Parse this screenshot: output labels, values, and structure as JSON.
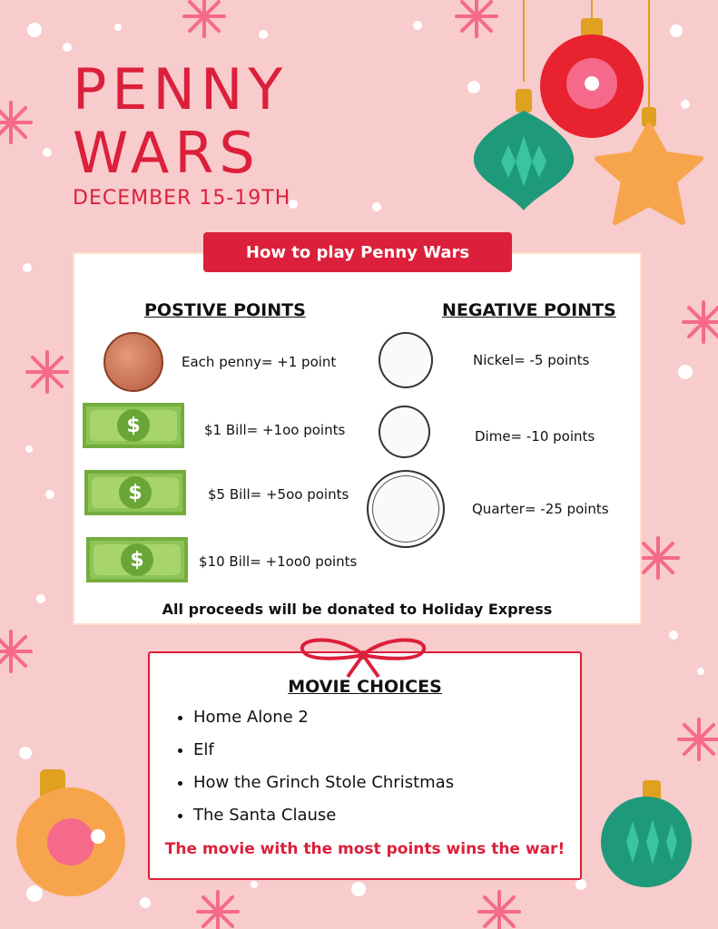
{
  "title": {
    "line1": "PENNY",
    "line2": "WARS",
    "dates": "DECEMBER 15-19TH"
  },
  "banner": "How to play Penny Wars",
  "positive": {
    "heading": "POSTIVE POINTS",
    "items": [
      {
        "icon": "penny-icon",
        "label": "Each penny= +1 point"
      },
      {
        "icon": "dollar-bill-icon",
        "label": "$1 Bill= +1oo points"
      },
      {
        "icon": "dollar-bill-icon",
        "label": "$5 Bill= +5oo points"
      },
      {
        "icon": "dollar-bill-icon",
        "label": "$10 Bill= +1oo0 points"
      }
    ]
  },
  "negative": {
    "heading": "NEGATIVE POINTS",
    "items": [
      {
        "icon": "nickel-icon",
        "label": "Nickel= -5 points"
      },
      {
        "icon": "dime-icon",
        "label": "Dime= -10 points"
      },
      {
        "icon": "quarter-icon",
        "label": "Quarter= -25 points"
      }
    ]
  },
  "bill_symbol": "$",
  "footer": "All proceeds will be donated to Holiday Express",
  "movies": {
    "heading": "MOVIE CHOICES",
    "items": [
      "Home Alone 2",
      "Elf",
      "How the Grinch Stole Christmas",
      "The Santa Clause"
    ],
    "tagline": "The movie with the most points wins the war!"
  },
  "colors": {
    "background": "#f8cbcc",
    "accent": "#dc1f3a",
    "bill": "#8dc455",
    "ornament_green": "#1e9a7a",
    "ornament_orange": "#f7a54d"
  }
}
